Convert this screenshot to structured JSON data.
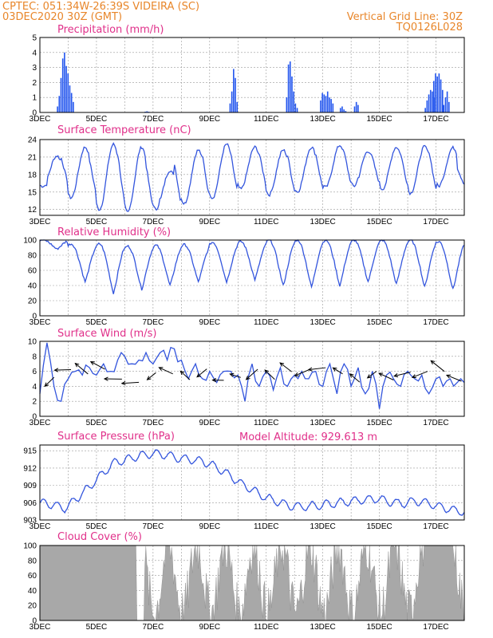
{
  "header": {
    "line1": "CPTEC:   051:34W-26:39S   VIDEIRA (SC)",
    "line2": "03DEC2020 30Z (GMT)",
    "right1": "Vertical Grid Line: 30Z",
    "right2": "TQ0126L028"
  },
  "model_altitude": "Model Altitude: 929.613 m",
  "chart_data": [
    {
      "type": "bar",
      "title": "Precipitation (mm/h)",
      "x_ticks": [
        "3DEC",
        "5DEC",
        "7DEC",
        "9DEC",
        "11DEC",
        "13DEC",
        "15DEC",
        "17DEC"
      ],
      "ylim": [
        0,
        5
      ],
      "yticks": [
        0,
        1,
        2,
        3,
        4,
        5
      ],
      "color": "#2255ee",
      "events": [
        {
          "day": 0.6,
          "heights": [
            0.4,
            1.1,
            2.3,
            3.6,
            4.0,
            3.1,
            2.6,
            1.8,
            1.3,
            0.7
          ]
        },
        {
          "day": 3.7,
          "heights": [
            0.05,
            0.08,
            0.05
          ]
        },
        {
          "day": 6.7,
          "heights": [
            0.6,
            1.4,
            2.9,
            2.3,
            0.7
          ]
        },
        {
          "day": 8.7,
          "heights": [
            1.0,
            3.2,
            3.4,
            2.4,
            1.4,
            0.6,
            0.3
          ]
        },
        {
          "day": 9.9,
          "heights": [
            0.8,
            1.3,
            1.2,
            1.1,
            1.4,
            1.0,
            0.9,
            0.6
          ]
        },
        {
          "day": 10.6,
          "heights": [
            0.3,
            0.4,
            0.2,
            0.1
          ]
        },
        {
          "day": 11.1,
          "heights": [
            0.4,
            0.7,
            0.5
          ]
        },
        {
          "day": 13.6,
          "heights": [
            0.3,
            0.8,
            1.2,
            1.5,
            1.4,
            1.0
          ]
        },
        {
          "day": 13.9,
          "heights": [
            2.1,
            2.6,
            2.4,
            2.6,
            2.2,
            1.5
          ]
        },
        {
          "day": 14.25,
          "heights": [
            0.5,
            1.0,
            1.4,
            0.7
          ]
        }
      ]
    },
    {
      "type": "line",
      "title": "Surface Temperature (nC)",
      "ylim": [
        11,
        24
      ],
      "yticks": [
        12,
        15,
        18,
        21,
        24
      ],
      "color": "#3355dd",
      "x_days": [
        0,
        0.5,
        1,
        1.5,
        2,
        2.5,
        3,
        3.5,
        4,
        4.5,
        5,
        5.5,
        6,
        6.5,
        7,
        7.5,
        8,
        8.5,
        9,
        9.5,
        10,
        10.5,
        11,
        11.5,
        12,
        12.5,
        13,
        13.5,
        14,
        14.5,
        15
      ],
      "values": [
        16.5,
        20,
        21,
        21.5,
        21,
        22,
        23,
        21.5,
        20.5,
        17.5,
        21,
        21,
        22,
        22,
        22,
        21.5,
        22,
        21,
        22,
        21.5,
        22,
        21.8,
        22.3,
        20.8,
        21,
        21.5,
        22,
        21.6,
        23,
        21.4,
        18.8
      ],
      "daily_min": [
        16,
        14,
        12,
        11.5,
        12,
        13,
        14,
        15.5,
        14.5,
        15,
        15.8,
        16,
        15.5,
        14.8,
        16
      ]
    },
    {
      "type": "line",
      "title": "Relative Humidity (%)",
      "ylim": [
        0,
        100
      ],
      "yticks": [
        0,
        20,
        40,
        60,
        80,
        100
      ],
      "color": "#3355dd",
      "daily_max": [
        100,
        95,
        95,
        92,
        93,
        94,
        97,
        98,
        100,
        100,
        100,
        100,
        100,
        100,
        98,
        100
      ],
      "daily_min": [
        88,
        45,
        30,
        35,
        40,
        45,
        45,
        48,
        40,
        38,
        40,
        45,
        42,
        38,
        35,
        60
      ]
    },
    {
      "type": "line",
      "title": "Surface Wind (m/s)",
      "ylim": [
        0,
        10
      ],
      "yticks": [
        0,
        2,
        4,
        6,
        8,
        10
      ],
      "color": "#3355dd",
      "values": [
        3,
        9.8,
        4,
        2,
        5,
        6,
        5.5,
        6.5,
        5.5,
        7,
        6,
        7.5,
        8,
        7,
        7.5,
        8.5,
        7,
        8.5,
        7.5,
        9,
        7.5,
        5,
        7,
        5,
        6,
        4.5,
        6,
        6,
        5.5,
        2,
        7,
        4,
        6,
        3.5,
        6.5,
        4,
        5.5,
        6,
        5,
        6,
        4,
        7,
        3,
        7,
        4,
        6.5,
        3,
        6,
        1,
        5.5,
        5,
        4,
        6,
        5,
        5.5,
        3,
        5,
        4,
        5,
        4.5,
        4.5
      ]
    },
    {
      "type": "line",
      "title": "Surface Pressure (hPa)",
      "ylim": [
        903,
        916
      ],
      "yticks": [
        903,
        906,
        909,
        912,
        915
      ],
      "color": "#3355dd",
      "trend": [
        906,
        905.7,
        905,
        906.8,
        908.8,
        911,
        913,
        913.5,
        914.2,
        914.5,
        914.3,
        913.8,
        913.5,
        913.2,
        912.3,
        911,
        909.5,
        908.2,
        907,
        906.2,
        905.5,
        905.3,
        905.5,
        905.7,
        906,
        906.3,
        906.5,
        906.7,
        906.2,
        905.8,
        906.3,
        906,
        905.3,
        904.8,
        904.4
      ]
    },
    {
      "type": "area",
      "title": "Cloud Cover (%)",
      "ylim": [
        0,
        100
      ],
      "yticks": [
        0,
        20,
        40,
        60,
        80,
        100
      ],
      "color": "#a8a8a8"
    }
  ]
}
